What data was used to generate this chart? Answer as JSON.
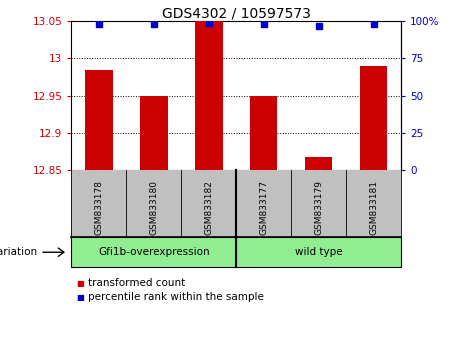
{
  "title": "GDS4302 / 10597573",
  "samples": [
    "GSM833178",
    "GSM833180",
    "GSM833182",
    "GSM833177",
    "GSM833179",
    "GSM833181"
  ],
  "group_labels": [
    "Gfi1b-overexpression",
    "wild type"
  ],
  "group_split": 3,
  "bar_values": [
    12.985,
    12.95,
    13.05,
    12.95,
    12.868,
    12.99
  ],
  "percentile_values": [
    98,
    98,
    99,
    98,
    97,
    98
  ],
  "bar_color": "#CC0000",
  "percentile_color": "#0000CC",
  "ymin": 12.85,
  "ymax": 13.05,
  "yticks": [
    12.85,
    12.9,
    12.95,
    13.0,
    13.05
  ],
  "ytick_labels": [
    "12.85",
    "12.9",
    "12.95",
    "13",
    "13.05"
  ],
  "y2min": 0,
  "y2max": 100,
  "y2ticks": [
    0,
    25,
    50,
    75,
    100
  ],
  "y2tick_labels": [
    "0",
    "25",
    "50",
    "75",
    "100%"
  ],
  "gridlines": [
    13.0,
    12.95,
    12.9
  ],
  "bg_color": "#ffffff",
  "sample_bg_color": "#C0C0C0",
  "group_bg_color": "#90EE90",
  "tick_color_left": "#CC0000",
  "tick_color_right": "#0000CC",
  "legend_items": [
    "transformed count",
    "percentile rank within the sample"
  ],
  "bar_width": 0.5,
  "title_fontsize": 10,
  "tick_fontsize": 7.5,
  "label_fontsize": 7.5
}
